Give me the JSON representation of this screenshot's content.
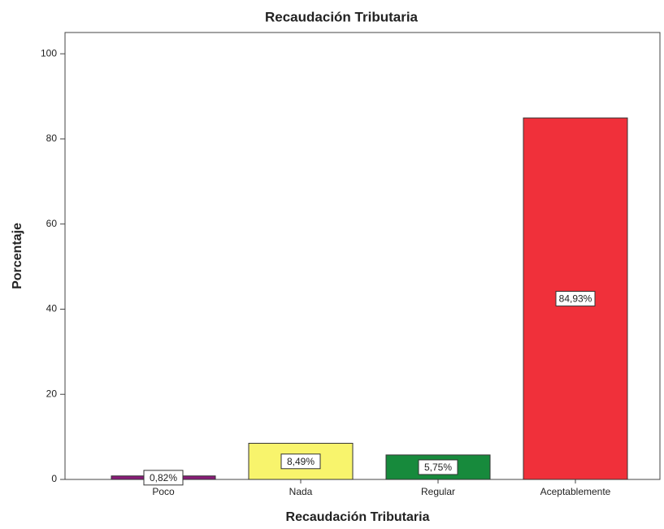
{
  "chart_data": {
    "type": "bar",
    "title": "Recaudación Tributaria",
    "x_label": "Recaudación Tributaria",
    "y_label": "Porcentaje",
    "categories": [
      "Poco",
      "Nada",
      "Regular",
      "Aceptablemente"
    ],
    "values": [
      0.82,
      8.49,
      5.75,
      84.93
    ],
    "value_labels": [
      "0,82%",
      "8,49%",
      "5,75%",
      "84,93%"
    ],
    "colors": [
      "#8a1c78",
      "#f8f46c",
      "#178a3c",
      "#f0303a"
    ],
    "ylim": [
      0,
      105
    ],
    "yticks": [
      0,
      20,
      40,
      60,
      80,
      100
    ],
    "grid": false
  }
}
